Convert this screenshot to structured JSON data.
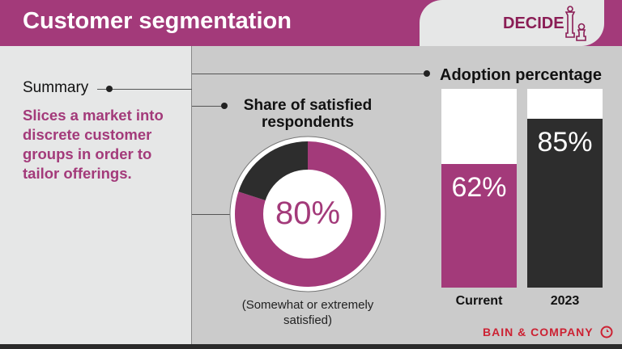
{
  "header": {
    "title": "Customer segmentation",
    "badge": "DECIDE",
    "badge_icon": "chess-pieces-icon"
  },
  "summary": {
    "heading": "Summary",
    "text": "Slices a market into discrete customer groups in order to tailor offerings."
  },
  "colors": {
    "brand": "#a33a7a",
    "dark": "#2d2d2d",
    "logo": "#cc2233"
  },
  "chart_data": [
    {
      "type": "pie",
      "title": "Share of satisfied respondents",
      "center_label": "80%",
      "note": "(Somewhat or extremely satisfied)",
      "slices": [
        {
          "value": 80,
          "color": "#a33a7a"
        },
        {
          "value": 20,
          "color": "#2d2d2d"
        }
      ]
    },
    {
      "type": "bar",
      "title": "Adoption percentage",
      "categories": [
        "Current",
        "2023"
      ],
      "values": [
        62,
        85
      ],
      "labels": [
        "62%",
        "85%"
      ],
      "ylim": [
        0,
        100
      ],
      "colors": [
        "#a33a7a",
        "#2d2d2d"
      ]
    }
  ],
  "footer": {
    "logo": "BAIN & COMPANY"
  }
}
